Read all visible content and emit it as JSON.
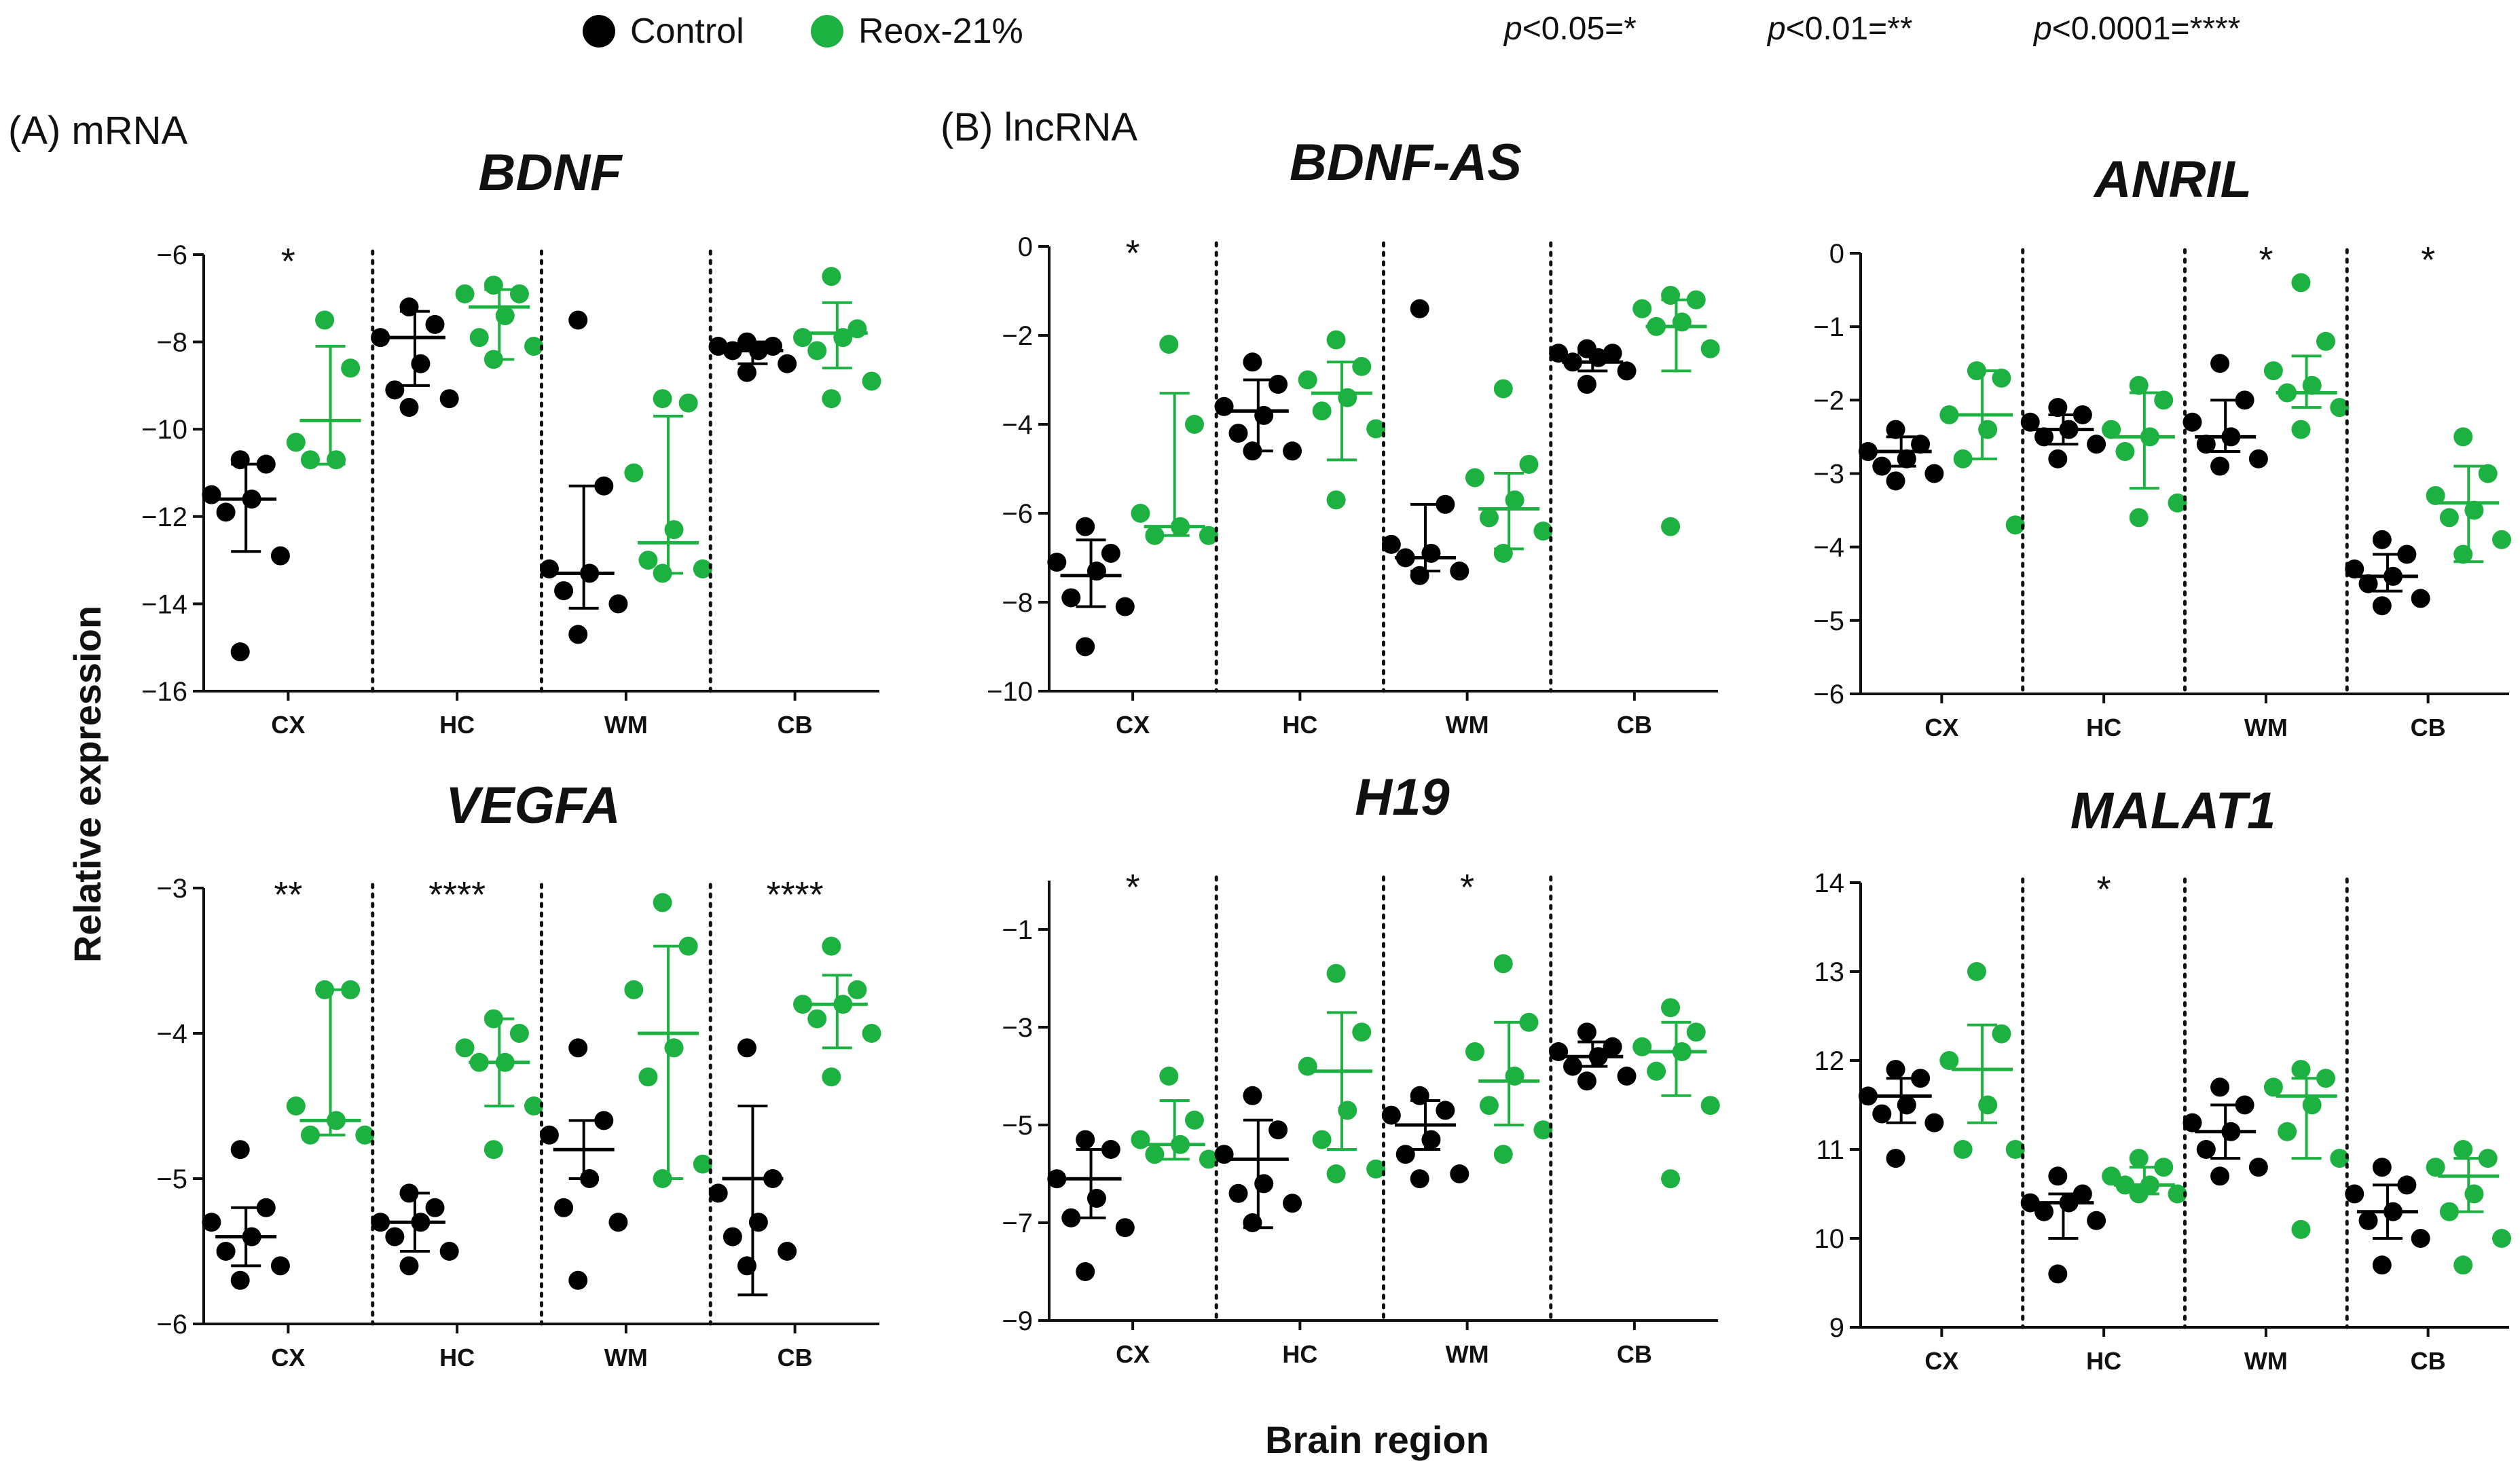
{
  "legend": {
    "items": [
      {
        "label": "Control",
        "color": "#000000"
      },
      {
        "label": "Reox-21%",
        "color": "#1db142"
      }
    ],
    "significance_key": [
      {
        "p": "p",
        "rest": "<0.05=*"
      },
      {
        "p": "p",
        "rest": "<0.01=**"
      },
      {
        "p": "p",
        "rest": "<0.0001=****"
      }
    ]
  },
  "section_labels": {
    "mrna": "(A) mRNA",
    "lncrna": "(B) lncRNA"
  },
  "axis_titles": {
    "y": "Relative expression",
    "x": "Brain region"
  },
  "colors": {
    "control": "#000000",
    "reox": "#1db142"
  },
  "chart_data": [
    {
      "type": "scatter",
      "title": "BDNF",
      "ylim": [
        -16,
        -6
      ],
      "yticks": [
        -16,
        -14,
        -12,
        -10,
        -8,
        -6
      ],
      "categories": [
        "CX",
        "HC",
        "WM",
        "CB"
      ],
      "significance": [
        "*",
        "",
        "",
        ""
      ],
      "series": [
        {
          "name": "Control",
          "points": [
            [
              -10.7,
              -10.8,
              -11.5,
              -11.6,
              -11.9,
              -12.9,
              -15.1
            ],
            [
              -7.2,
              -7.6,
              -7.9,
              -8.5,
              -9.1,
              -9.3,
              -9.5
            ],
            [
              -7.5,
              -11.3,
              -13.2,
              -13.3,
              -13.7,
              -14.0,
              -14.7
            ],
            [
              -8.0,
              -8.1,
              -8.1,
              -8.2,
              -8.2,
              -8.5,
              -8.7
            ]
          ],
          "mean": [
            -11.6,
            -7.9,
            -13.3,
            -8.2
          ],
          "err_low": [
            -12.8,
            -9.0,
            -14.1,
            -8.5
          ],
          "err_high": [
            -10.8,
            -7.3,
            -11.3,
            -8.0
          ]
        },
        {
          "name": "Reox-21%",
          "points": [
            [
              -7.5,
              -8.6,
              -10.3,
              -10.7,
              -10.7
            ],
            [
              -6.7,
              -6.9,
              -6.9,
              -7.4,
              -7.9,
              -8.1,
              -8.4
            ],
            [
              -9.3,
              -9.4,
              -11.0,
              -12.3,
              -13.0,
              -13.2,
              -13.3
            ],
            [
              -6.5,
              -7.7,
              -7.9,
              -7.9,
              -8.2,
              -8.9,
              -9.3
            ]
          ],
          "mean": [
            -9.8,
            -7.2,
            -12.6,
            -7.8
          ],
          "err_low": [
            -10.8,
            -8.4,
            -13.3,
            -8.6
          ],
          "err_high": [
            -8.1,
            -6.8,
            -9.7,
            -7.1
          ]
        }
      ]
    },
    {
      "type": "scatter",
      "title": "BDNF-AS",
      "ylim": [
        -10,
        0
      ],
      "yticks": [
        -10,
        -8,
        -6,
        -4,
        -2,
        0
      ],
      "categories": [
        "CX",
        "HC",
        "WM",
        "CB"
      ],
      "significance": [
        "*",
        "",
        "",
        ""
      ],
      "series": [
        {
          "name": "Control",
          "points": [
            [
              -6.3,
              -6.9,
              -7.1,
              -7.3,
              -7.9,
              -8.1,
              -9.0
            ],
            [
              -2.6,
              -3.1,
              -3.6,
              -3.8,
              -4.2,
              -4.6,
              -4.6
            ],
            [
              -1.4,
              -5.8,
              -6.7,
              -6.9,
              -7.0,
              -7.3,
              -7.4
            ],
            [
              -2.3,
              -2.4,
              -2.4,
              -2.5,
              -2.6,
              -2.8,
              -3.1
            ]
          ],
          "mean": [
            -7.4,
            -3.7,
            -7.0,
            -2.6
          ],
          "err_low": [
            -8.1,
            -4.6,
            -7.3,
            -2.8
          ],
          "err_high": [
            -6.6,
            -3.0,
            -5.8,
            -2.4
          ]
        },
        {
          "name": "Reox-21%",
          "points": [
            [
              -2.2,
              -4.0,
              -6.0,
              -6.3,
              -6.5,
              -6.5
            ],
            [
              -2.1,
              -2.7,
              -3.0,
              -3.4,
              -3.7,
              -4.1,
              -5.7
            ],
            [
              -3.2,
              -4.9,
              -5.2,
              -5.7,
              -6.1,
              -6.4,
              -6.9
            ],
            [
              -1.1,
              -1.2,
              -1.4,
              -1.7,
              -1.8,
              -2.3,
              -6.3
            ]
          ],
          "mean": [
            -6.3,
            -3.3,
            -5.9,
            -1.8
          ],
          "err_low": [
            -6.5,
            -4.8,
            -6.8,
            -2.8
          ],
          "err_high": [
            -3.3,
            -2.6,
            -5.1,
            -1.2
          ]
        }
      ]
    },
    {
      "type": "scatter",
      "title": "ANRIL",
      "ylim": [
        -6,
        0
      ],
      "yticks": [
        -6,
        -5,
        -4,
        -3,
        -2,
        -1,
        0
      ],
      "categories": [
        "CX",
        "HC",
        "WM",
        "CB"
      ],
      "significance": [
        "",
        "",
        "*",
        "*"
      ],
      "series": [
        {
          "name": "Control",
          "points": [
            [
              -2.4,
              -2.6,
              -2.7,
              -2.8,
              -2.9,
              -3.0,
              -3.1
            ],
            [
              -2.1,
              -2.2,
              -2.3,
              -2.4,
              -2.5,
              -2.6,
              -2.8
            ],
            [
              -1.5,
              -2.0,
              -2.3,
              -2.5,
              -2.6,
              -2.8,
              -2.9
            ],
            [
              -3.9,
              -4.1,
              -4.3,
              -4.4,
              -4.5,
              -4.7,
              -4.8
            ]
          ],
          "mean": [
            -2.7,
            -2.4,
            -2.5,
            -4.4
          ],
          "err_low": [
            -2.9,
            -2.6,
            -2.7,
            -4.6
          ],
          "err_high": [
            -2.5,
            -2.2,
            -2.0,
            -4.1
          ]
        },
        {
          "name": "Reox-21%",
          "points": [
            [
              -1.6,
              -1.7,
              -2.2,
              -2.4,
              -2.8,
              -3.7
            ],
            [
              -1.8,
              -2.0,
              -2.4,
              -2.5,
              -2.7,
              -3.4,
              -3.6
            ],
            [
              -0.4,
              -1.2,
              -1.6,
              -1.8,
              -1.9,
              -2.1,
              -2.4
            ],
            [
              -2.5,
              -3.0,
              -3.3,
              -3.5,
              -3.6,
              -3.9,
              -4.1
            ]
          ],
          "mean": [
            -2.2,
            -2.5,
            -1.9,
            -3.4
          ],
          "err_low": [
            -2.8,
            -3.2,
            -2.1,
            -4.2
          ],
          "err_high": [
            -1.6,
            -1.9,
            -1.4,
            -2.9
          ]
        }
      ]
    },
    {
      "type": "scatter",
      "title": "VEGFA",
      "ylim": [
        -6,
        -3
      ],
      "yticks": [
        -6,
        -5,
        -4,
        -3
      ],
      "categories": [
        "CX",
        "HC",
        "WM",
        "CB"
      ],
      "significance": [
        "**",
        "****",
        "",
        "****"
      ],
      "series": [
        {
          "name": "Control",
          "points": [
            [
              -4.8,
              -5.2,
              -5.3,
              -5.4,
              -5.5,
              -5.6,
              -5.7
            ],
            [
              -5.1,
              -5.2,
              -5.3,
              -5.3,
              -5.4,
              -5.5,
              -5.6
            ],
            [
              -4.1,
              -4.6,
              -4.7,
              -5.0,
              -5.2,
              -5.3,
              -5.7
            ],
            [
              -4.1,
              -5.0,
              -5.1,
              -5.3,
              -5.4,
              -5.5,
              -5.6
            ]
          ],
          "mean": [
            -5.4,
            -5.3,
            -4.8,
            -5.0
          ],
          "err_low": [
            -5.6,
            -5.5,
            -5.0,
            -5.8
          ],
          "err_high": [
            -5.2,
            -5.1,
            -4.6,
            -4.5
          ]
        },
        {
          "name": "Reox-21%",
          "points": [
            [
              -3.7,
              -3.7,
              -4.5,
              -4.6,
              -4.7,
              -4.7
            ],
            [
              -3.9,
              -4.0,
              -4.1,
              -4.2,
              -4.2,
              -4.5,
              -4.8
            ],
            [
              -3.1,
              -3.4,
              -3.7,
              -4.1,
              -4.3,
              -4.9,
              -5.0
            ],
            [
              -3.4,
              -3.7,
              -3.8,
              -3.8,
              -3.9,
              -4.0,
              -4.3
            ]
          ],
          "mean": [
            -4.6,
            -4.2,
            -4.0,
            -3.8
          ],
          "err_low": [
            -4.7,
            -4.5,
            -5.0,
            -4.1
          ],
          "err_high": [
            -3.7,
            -3.9,
            -3.4,
            -3.6
          ]
        }
      ]
    },
    {
      "type": "scatter",
      "title": "H19",
      "ylim": [
        -9,
        0
      ],
      "yticks": [
        -9,
        -7,
        -5,
        -3,
        -1
      ],
      "categories": [
        "CX",
        "HC",
        "WM",
        "CB"
      ],
      "significance": [
        "*",
        "",
        "*",
        ""
      ],
      "series": [
        {
          "name": "Control",
          "points": [
            [
              -5.3,
              -5.5,
              -6.1,
              -6.5,
              -6.9,
              -7.1,
              -8.0
            ],
            [
              -4.4,
              -5.1,
              -5.6,
              -6.2,
              -6.4,
              -6.6,
              -7.0
            ],
            [
              -4.4,
              -4.7,
              -4.8,
              -5.3,
              -5.6,
              -6.0,
              -6.1
            ],
            [
              -3.1,
              -3.4,
              -3.5,
              -3.6,
              -3.8,
              -4.0,
              -4.1
            ]
          ],
          "mean": [
            -6.1,
            -5.7,
            -5.0,
            -3.6
          ],
          "err_low": [
            -6.9,
            -7.1,
            -5.5,
            -3.8
          ],
          "err_high": [
            -5.5,
            -4.9,
            -4.5,
            -3.3
          ]
        },
        {
          "name": "Reox-21%",
          "points": [
            [
              -4.0,
              -4.9,
              -5.3,
              -5.4,
              -5.6,
              -5.7
            ],
            [
              -1.9,
              -3.1,
              -3.8,
              -4.7,
              -5.3,
              -5.9,
              -6.0
            ],
            [
              -1.7,
              -2.9,
              -3.5,
              -4.0,
              -4.6,
              -5.1,
              -5.6
            ],
            [
              -2.6,
              -3.1,
              -3.4,
              -3.5,
              -3.9,
              -4.6,
              -6.1
            ]
          ],
          "mean": [
            -5.4,
            -3.9,
            -4.1,
            -3.5
          ],
          "err_low": [
            -5.7,
            -5.5,
            -5.0,
            -4.4
          ],
          "err_high": [
            -4.5,
            -2.7,
            -2.9,
            -2.9
          ]
        }
      ]
    },
    {
      "type": "scatter",
      "title": "MALAT1",
      "ylim": [
        9,
        14
      ],
      "yticks": [
        9,
        10,
        11,
        12,
        13,
        14
      ],
      "categories": [
        "CX",
        "HC",
        "WM",
        "CB"
      ],
      "significance": [
        "",
        "*",
        "",
        ""
      ],
      "series": [
        {
          "name": "Control",
          "points": [
            [
              11.9,
              11.8,
              11.6,
              11.5,
              11.4,
              11.3,
              10.9
            ],
            [
              10.7,
              10.5,
              10.4,
              10.4,
              10.3,
              10.2,
              9.6
            ],
            [
              11.7,
              11.5,
              11.3,
              11.2,
              11.0,
              10.8,
              10.7
            ],
            [
              10.8,
              10.6,
              10.5,
              10.3,
              10.2,
              10.0,
              9.7
            ]
          ],
          "mean": [
            11.6,
            10.4,
            11.2,
            10.3
          ],
          "err_low": [
            11.3,
            10.0,
            10.9,
            10.0
          ],
          "err_high": [
            11.8,
            10.5,
            11.5,
            10.6
          ]
        },
        {
          "name": "Reox-21%",
          "points": [
            [
              13.0,
              12.3,
              12.0,
              11.5,
              11.0,
              11.0
            ],
            [
              10.9,
              10.8,
              10.7,
              10.6,
              10.6,
              10.5,
              10.5
            ],
            [
              11.9,
              11.8,
              11.7,
              11.5,
              11.2,
              10.9,
              10.1
            ],
            [
              11.0,
              10.9,
              10.8,
              10.5,
              10.3,
              10.0,
              9.7
            ]
          ],
          "mean": [
            11.9,
            10.6,
            11.6,
            10.7
          ],
          "err_low": [
            11.3,
            10.5,
            10.9,
            10.3
          ],
          "err_high": [
            12.4,
            10.8,
            11.8,
            10.9
          ]
        }
      ]
    }
  ]
}
